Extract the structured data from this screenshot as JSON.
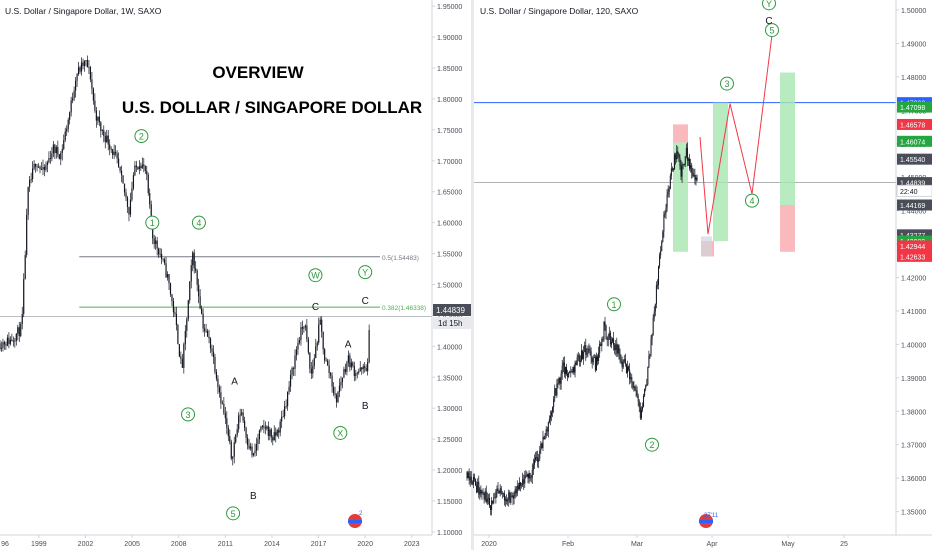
{
  "colors": {
    "candle": "#131722",
    "grid_axis": "#d1d4dc",
    "axis_text": "#4a4e59",
    "wave_green": "#2e9a3e",
    "fib_green": "#4caf50",
    "fib_gray": "#787b86",
    "blue_line": "#2962ff",
    "box_green": "#a8e6b0",
    "box_red": "#f8a8ad",
    "path_red": "#f23645",
    "tag_green": "#26a641",
    "tag_red": "#f23645",
    "tag_blue": "#2962ff",
    "tag_dark": "#4a4e59"
  },
  "chart_data": [
    {
      "type": "candlestick",
      "header": "U.S. Dollar / Singapore Dollar, 1W, SAXO",
      "title": "OVERVIEW",
      "subtitle": "U.S. DOLLAR / SINGAPORE DOLLAR",
      "x_ticks": [
        "96",
        "1999",
        "2002",
        "2005",
        "2008",
        "2011",
        "2014",
        "2017",
        "2020",
        "2023"
      ],
      "x_range": [
        1996.5,
        2024.3
      ],
      "y_ticks": [
        "1.95000",
        "1.90000",
        "1.85000",
        "1.80000",
        "1.75000",
        "1.70000",
        "1.65000",
        "1.60000",
        "1.55000",
        "1.50000",
        "1.45000",
        "1.40000",
        "1.35000",
        "1.30000",
        "1.25000",
        "1.20000",
        "1.15000",
        "1.10000"
      ],
      "ylim": [
        1.095,
        1.96
      ],
      "price_path": [
        [
          1996.5,
          1.405
        ],
        [
          1997.2,
          1.41
        ],
        [
          1997.9,
          1.43
        ],
        [
          1998.3,
          1.65
        ],
        [
          1998.8,
          1.7
        ],
        [
          1999.3,
          1.68
        ],
        [
          1999.9,
          1.72
        ],
        [
          2000.4,
          1.71
        ],
        [
          2001.0,
          1.78
        ],
        [
          2001.4,
          1.84
        ],
        [
          2001.7,
          1.85
        ],
        [
          2002.0,
          1.86
        ],
        [
          2002.3,
          1.84
        ],
        [
          2002.6,
          1.78
        ],
        [
          2003.0,
          1.75
        ],
        [
          2003.5,
          1.73
        ],
        [
          2004.0,
          1.7
        ],
        [
          2004.4,
          1.66
        ],
        [
          2004.8,
          1.62
        ],
        [
          2005.1,
          1.68
        ],
        [
          2005.5,
          1.7
        ],
        [
          2005.9,
          1.68
        ],
        [
          2006.3,
          1.58
        ],
        [
          2006.8,
          1.55
        ],
        [
          2007.3,
          1.51
        ],
        [
          2007.8,
          1.44
        ],
        [
          2008.2,
          1.36
        ],
        [
          2008.5,
          1.44
        ],
        [
          2008.9,
          1.55
        ],
        [
          2009.2,
          1.5
        ],
        [
          2009.6,
          1.43
        ],
        [
          2010.1,
          1.4
        ],
        [
          2010.6,
          1.33
        ],
        [
          2011.0,
          1.28
        ],
        [
          2011.4,
          1.22
        ],
        [
          2011.7,
          1.26
        ],
        [
          2012.0,
          1.3
        ],
        [
          2012.4,
          1.25
        ],
        [
          2012.8,
          1.22
        ],
        [
          2013.2,
          1.26
        ],
        [
          2013.6,
          1.27
        ],
        [
          2014.1,
          1.25
        ],
        [
          2014.5,
          1.27
        ],
        [
          2014.9,
          1.31
        ],
        [
          2015.3,
          1.36
        ],
        [
          2015.7,
          1.41
        ],
        [
          2016.1,
          1.44
        ],
        [
          2016.5,
          1.35
        ],
        [
          2016.9,
          1.41
        ],
        [
          2017.1,
          1.44
        ],
        [
          2017.4,
          1.38
        ],
        [
          2017.8,
          1.35
        ],
        [
          2018.1,
          1.31
        ],
        [
          2018.5,
          1.35
        ],
        [
          2018.9,
          1.38
        ],
        [
          2019.3,
          1.36
        ],
        [
          2019.8,
          1.36
        ],
        [
          2020.2,
          1.37
        ],
        [
          2020.3,
          1.46
        ],
        [
          2020.35,
          1.43
        ]
      ],
      "last_price": "1.44839",
      "countdown": "1d 15h",
      "fib_levels": [
        {
          "label": "0.5(1.54483)",
          "value": 1.54483
        },
        {
          "label": "0.382(1.46338)",
          "value": 1.46338
        }
      ],
      "current_line": 1.44839,
      "wave_labels": [
        {
          "text": "1",
          "circled": true,
          "x": 2006.3,
          "y": 1.6
        },
        {
          "text": "2",
          "circled": true,
          "x": 2005.6,
          "y": 1.74
        },
        {
          "text": "3",
          "circled": true,
          "x": 2008.6,
          "y": 1.29
        },
        {
          "text": "4",
          "circled": true,
          "x": 2009.3,
          "y": 1.6
        },
        {
          "text": "5",
          "circled": true,
          "x": 2011.5,
          "y": 1.13
        },
        {
          "text": "A",
          "circled": false,
          "x": 2011.6,
          "y": 1.345
        },
        {
          "text": "B",
          "circled": false,
          "x": 2012.8,
          "y": 1.16
        },
        {
          "text": "W",
          "circled": true,
          "x": 2016.8,
          "y": 1.515
        },
        {
          "text": "C",
          "circled": false,
          "x": 2016.8,
          "y": 1.465
        },
        {
          "text": "A",
          "circled": false,
          "x": 2018.9,
          "y": 1.405
        },
        {
          "text": "X",
          "circled": true,
          "x": 2018.4,
          "y": 1.26
        },
        {
          "text": "Y",
          "circled": true,
          "x": 2020.0,
          "y": 1.52
        },
        {
          "text": "C",
          "circled": false,
          "x": 2020.0,
          "y": 1.475
        },
        {
          "text": "B",
          "circled": false,
          "x": 2020.0,
          "y": 1.305
        }
      ]
    },
    {
      "type": "candlestick",
      "header": "U.S. Dollar / Singapore Dollar, 120, SAXO",
      "x_ticks": [
        "2020",
        "Feb",
        "Mar",
        "Apr",
        "May",
        "25"
      ],
      "y_ticks": [
        "1.50000",
        "1.49000",
        "1.48000",
        "1.47000",
        "1.46000",
        "1.45000",
        "1.44000",
        "1.43000",
        "1.42000",
        "1.41000",
        "1.40000",
        "1.39000",
        "1.38000",
        "1.37000",
        "1.36000",
        "1.35000"
      ],
      "ylim": [
        1.343,
        1.503
      ],
      "price_path": [
        [
          0,
          1.362
        ],
        [
          8,
          1.358
        ],
        [
          15,
          1.355
        ],
        [
          22,
          1.352
        ],
        [
          30,
          1.356
        ],
        [
          38,
          1.354
        ],
        [
          45,
          1.355
        ],
        [
          52,
          1.358
        ],
        [
          60,
          1.362
        ],
        [
          68,
          1.368
        ],
        [
          75,
          1.375
        ],
        [
          82,
          1.385
        ],
        [
          90,
          1.393
        ],
        [
          95,
          1.39
        ],
        [
          102,
          1.395
        ],
        [
          110,
          1.398
        ],
        [
          115,
          1.397
        ],
        [
          120,
          1.394
        ],
        [
          124,
          1.399
        ],
        [
          128,
          1.405
        ],
        [
          132,
          1.402
        ],
        [
          138,
          1.4
        ],
        [
          145,
          1.395
        ],
        [
          152,
          1.39
        ],
        [
          158,
          1.385
        ],
        [
          162,
          1.378
        ],
        [
          166,
          1.385
        ],
        [
          170,
          1.395
        ],
        [
          175,
          1.41
        ],
        [
          180,
          1.425
        ],
        [
          185,
          1.44
        ],
        [
          190,
          1.45
        ],
        [
          195,
          1.457
        ],
        [
          200,
          1.452
        ],
        [
          205,
          1.458
        ],
        [
          210,
          1.452
        ],
        [
          215,
          1.448
        ]
      ],
      "tags": [
        {
          "label": "1.46074",
          "value": 1.46074,
          "color": "green"
        },
        {
          "label": "1.47230",
          "value": 1.4723,
          "color": "blue"
        },
        {
          "label": "1.47098",
          "value": 1.47098,
          "color": "green"
        },
        {
          "label": "1.46578",
          "value": 1.46578,
          "color": "red"
        },
        {
          "label": "1.45540",
          "value": 1.4554,
          "color": "dark"
        },
        {
          "label": "1.44839",
          "value": 1.44839,
          "color": "dark"
        },
        {
          "label": "22:40",
          "value": 1.4459,
          "color": "white"
        },
        {
          "label": "1.44169",
          "value": 1.44169,
          "color": "dark"
        },
        {
          "label": "1.43277",
          "value": 1.43277,
          "color": "dark"
        },
        {
          "label": "1.43089",
          "value": 1.43089,
          "color": "green"
        },
        {
          "label": "1.42944",
          "value": 1.42944,
          "color": "red"
        },
        {
          "label": "1.42633",
          "value": 1.42633,
          "color": "red"
        }
      ],
      "blue_line": 1.4723,
      "current_line": 1.44839,
      "projection_path": [
        [
          1.462,
          0
        ],
        [
          1.433,
          1
        ],
        [
          1.472,
          2
        ],
        [
          1.445,
          3
        ],
        [
          1.495,
          4
        ]
      ],
      "wave_labels": [
        {
          "text": "1",
          "circled": true,
          "price": 1.412
        },
        {
          "text": "2",
          "circled": true,
          "price": 1.37
        },
        {
          "text": "3",
          "circled": true,
          "price": 1.478
        },
        {
          "text": "4",
          "circled": true,
          "price": 1.443
        },
        {
          "text": "5",
          "circled": true,
          "price": 1.494
        },
        {
          "text": "Y",
          "circled": true,
          "price": 1.502
        },
        {
          "text": "C",
          "circled": false,
          "price": 1.497
        }
      ]
    }
  ],
  "watermark_left": "TradingView",
  "watermark_right_clock": "37'11"
}
